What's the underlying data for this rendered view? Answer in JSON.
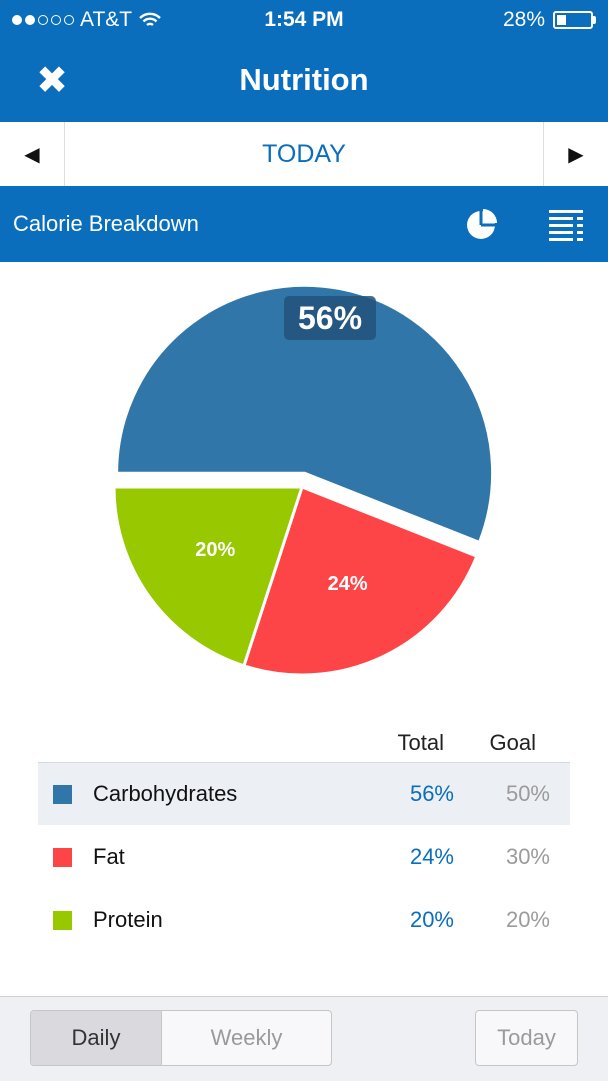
{
  "status_bar": {
    "carrier": "AT&T",
    "time": "1:54 PM",
    "battery": "28%",
    "signal_bars_filled": 2,
    "signal_bars_total": 5,
    "battery_level": 0.28,
    "wifi_icon": "wifi-icon"
  },
  "nav": {
    "title": "Nutrition",
    "close_icon": "close-icon"
  },
  "date_nav": {
    "label": "TODAY",
    "prev_icon": "triangle-left-icon",
    "next_icon": "triangle-right-icon"
  },
  "section": {
    "title": "Calorie Breakdown",
    "pie_icon": "pie-chart-icon",
    "list_icon": "list-icon"
  },
  "chart_data": {
    "type": "pie",
    "slices": [
      {
        "name": "Carbohydrates",
        "value": 56,
        "label": "56%",
        "color": "#3176a8",
        "highlighted": true
      },
      {
        "name": "Fat",
        "value": 24,
        "label": "24%",
        "color": "#fd4446",
        "highlighted": false
      },
      {
        "name": "Protein",
        "value": 20,
        "label": "20%",
        "color": "#98c800",
        "highlighted": false
      }
    ]
  },
  "table": {
    "headers": {
      "total": "Total",
      "goal": "Goal"
    },
    "rows": [
      {
        "name": "Carbohydrates",
        "total": "56%",
        "goal": "50%",
        "color": "#3176a8",
        "selected": true
      },
      {
        "name": "Fat",
        "total": "24%",
        "goal": "30%",
        "color": "#fd4446",
        "selected": false
      },
      {
        "name": "Protein",
        "total": "20%",
        "goal": "20%",
        "color": "#98c800",
        "selected": false
      }
    ]
  },
  "bottom": {
    "daily": "Daily",
    "weekly": "Weekly",
    "today": "Today",
    "active_tab": "Daily"
  }
}
